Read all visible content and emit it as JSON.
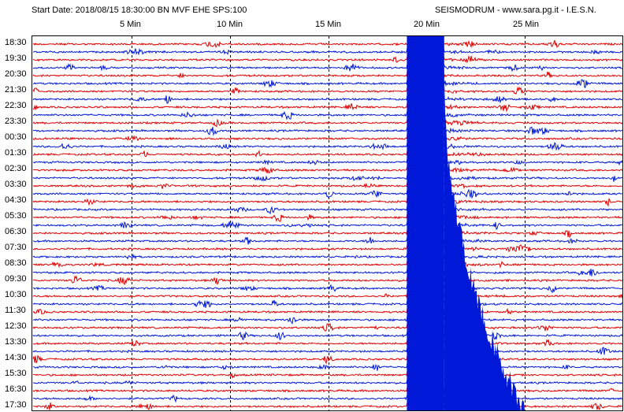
{
  "header": {
    "start": "Start Date: 2018/08/15 18:30:00 BN MVF EHE SPS:100",
    "source": "SEISMODRUM - www.sara.pg.it - I.E.S.N."
  },
  "chart_data": {
    "type": "line",
    "title": "Start Date: 2018/08/15 18:30:00 BN MVF EHE SPS:100",
    "x_minutes": [
      0,
      30
    ],
    "x_tick_values": [
      5,
      10,
      15,
      20,
      25
    ],
    "x_tick_labels": [
      "5 Min",
      "10 Min",
      "15 Min",
      "20 Min",
      "25 Min"
    ],
    "row_count": 47,
    "row_labels": [
      "18:30",
      "19:30",
      "20:30",
      "21:30",
      "22:30",
      "23:30",
      "00:30",
      "01:30",
      "02:30",
      "03:30",
      "04:30",
      "05:30",
      "06:30",
      "07:30",
      "08:30",
      "09:30",
      "10:30",
      "11:30",
      "12:30",
      "13:30",
      "14:30",
      "15:30",
      "16:30",
      "17:30"
    ],
    "trace_colors": [
      "#e00000",
      "#0018d8"
    ],
    "event_start_minute": 19.0,
    "event_peak_end_minute": 20.9,
    "event_coda_end_minute": 25.0
  }
}
